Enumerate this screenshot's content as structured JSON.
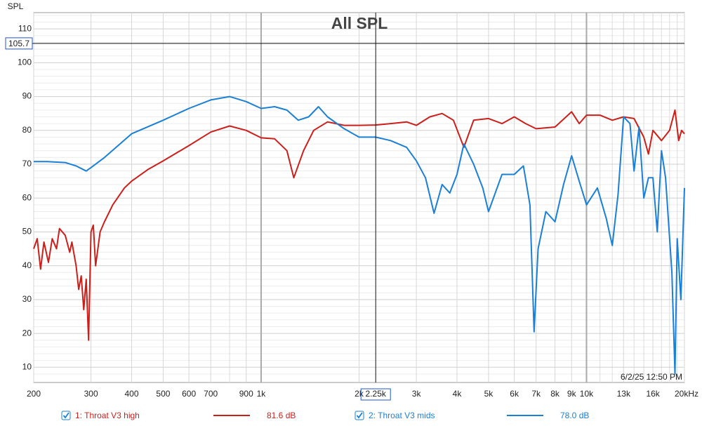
{
  "chart_data": {
    "type": "line",
    "title": "All SPL",
    "y_label": "SPL",
    "timestamp": "6/2/25 12:50 PM",
    "x_scale": "log",
    "xlim": [
      200,
      20000
    ],
    "ylim": [
      5.5,
      114.8
    ],
    "xticks": [
      200,
      300,
      400,
      500,
      600,
      700,
      900,
      {
        "value": 1000,
        "label": "1k"
      },
      {
        "value": 2000,
        "label": "2k"
      },
      {
        "value": 3000,
        "label": "3k"
      },
      {
        "value": 4000,
        "label": "4k"
      },
      {
        "value": 5000,
        "label": "5k"
      },
      {
        "value": 6000,
        "label": "6k"
      },
      {
        "value": 7000,
        "label": "7k"
      },
      {
        "value": 8000,
        "label": "8k"
      },
      {
        "value": 9000,
        "label": "9k"
      },
      {
        "value": 10000,
        "label": "10k"
      },
      {
        "value": 13000,
        "label": "13k"
      },
      {
        "value": 16000,
        "label": "16k"
      },
      {
        "value": 20000,
        "label": "20kHz"
      }
    ],
    "x_grid": [
      800,
      11000,
      12000,
      14000,
      15000,
      17000,
      18000,
      19000
    ],
    "yticks": [
      10,
      20,
      30,
      40,
      50,
      60,
      70,
      80,
      90,
      100,
      110
    ],
    "y_grid": [
      8,
      12,
      14,
      16,
      18,
      22,
      24,
      26,
      28,
      32,
      34,
      36,
      38,
      42,
      44,
      46,
      48,
      52,
      54,
      56,
      58,
      62,
      64,
      66,
      68,
      72,
      74,
      76,
      78,
      82,
      84,
      86,
      88,
      92,
      94,
      96,
      98,
      102,
      104,
      106,
      108,
      112,
      114
    ],
    "grid": true,
    "cursor": {
      "x": 2250,
      "x_label": "2.25k",
      "y": 105.7
    },
    "series": [
      {
        "name": "1: Throat V3 high",
        "color": "#cc1f1a",
        "cursor_value": 81.6,
        "cursor_label": "81.6 dB",
        "x": [
          200,
          205,
          210,
          215,
          222,
          228,
          235,
          240,
          250,
          258,
          262,
          270,
          275,
          280,
          285,
          290,
          295,
          300,
          305,
          310,
          320,
          330,
          350,
          380,
          400,
          450,
          500,
          600,
          700,
          800,
          900,
          1000,
          1100,
          1200,
          1260,
          1350,
          1450,
          1600,
          1800,
          2000,
          2250,
          2500,
          2800,
          3000,
          3300,
          3600,
          3900,
          4200,
          4500,
          5000,
          5500,
          6000,
          6500,
          7000,
          8000,
          9000,
          9500,
          10000,
          11000,
          12000,
          13000,
          14000,
          15000,
          15500,
          16000,
          17000,
          18000,
          18700,
          19200,
          19600,
          20000
        ],
        "values": [
          45,
          48,
          39,
          47,
          41,
          48,
          45,
          51,
          49,
          44,
          47,
          40,
          33,
          37,
          27,
          36,
          18,
          50,
          52,
          40,
          50,
          53,
          58,
          63,
          65,
          68.5,
          71,
          75.5,
          79.5,
          81.3,
          80,
          77.8,
          77.5,
          74,
          66,
          74,
          80,
          82.5,
          81.5,
          81.5,
          81.6,
          82,
          82.5,
          81.5,
          84,
          85,
          83,
          75,
          83,
          83.5,
          82,
          84,
          82,
          80.5,
          81,
          85.5,
          82,
          84.5,
          84.5,
          83,
          84,
          83.5,
          78,
          73,
          80,
          77,
          80,
          86,
          77,
          80,
          79
        ]
      },
      {
        "name": "2: Throat V3 mids",
        "color": "#1a7fd6",
        "cursor_value": 78.0,
        "cursor_label": "78.0 dB",
        "x": [
          200,
          220,
          250,
          270,
          290,
          300,
          330,
          400,
          500,
          600,
          700,
          800,
          900,
          1000,
          1100,
          1200,
          1300,
          1400,
          1500,
          1600,
          1800,
          2000,
          2250,
          2500,
          2800,
          3000,
          3200,
          3400,
          3600,
          3800,
          4000,
          4200,
          4500,
          4800,
          5000,
          5500,
          6000,
          6400,
          6700,
          6900,
          7100,
          7500,
          8000,
          8500,
          9000,
          9500,
          10000,
          10800,
          11500,
          12000,
          12500,
          13000,
          13600,
          14000,
          14500,
          15000,
          15500,
          16000,
          16500,
          17000,
          17500,
          18300,
          18700,
          19000,
          19500,
          20000
        ],
        "values": [
          70.8,
          70.8,
          70.5,
          69.5,
          68,
          69,
          72,
          79,
          83,
          86.5,
          89,
          90,
          88.5,
          86.5,
          87,
          86,
          83,
          84,
          87,
          84,
          80.5,
          78,
          78,
          77,
          75,
          71,
          66,
          55.5,
          64,
          61.5,
          67,
          76,
          70,
          63,
          56,
          67,
          67,
          69.5,
          58,
          20.5,
          45,
          56,
          53,
          64,
          72.5,
          65,
          58,
          63,
          54,
          46,
          61,
          84,
          82,
          68,
          81,
          60,
          66,
          66,
          50,
          74,
          66,
          38,
          8,
          48,
          30,
          63
        ]
      }
    ]
  }
}
